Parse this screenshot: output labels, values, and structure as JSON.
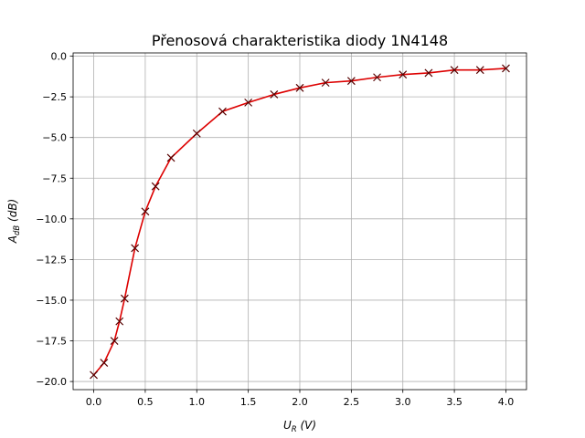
{
  "chart_data": {
    "type": "line",
    "title": "Přenosová charakteristika diody 1N4148",
    "xlabel": {
      "main": "U",
      "sub": "R",
      "unit": " (V)"
    },
    "ylabel": {
      "main": "A",
      "sub": "dB",
      "unit": " (dB)"
    },
    "xlim": [
      -0.2,
      4.2
    ],
    "ylim": [
      -20.5,
      0.2
    ],
    "xticks": [
      0.0,
      0.5,
      1.0,
      1.5,
      2.0,
      2.5,
      3.0,
      3.5,
      4.0
    ],
    "xtick_labels": [
      "0.0",
      "0.5",
      "1.0",
      "1.5",
      "2.0",
      "2.5",
      "3.0",
      "3.5",
      "4.0"
    ],
    "yticks": [
      0.0,
      -2.5,
      -5.0,
      -7.5,
      -10.0,
      -12.5,
      -15.0,
      -17.5,
      -20.0
    ],
    "ytick_labels": [
      "0.0",
      "−2.5",
      "−5.0",
      "−7.5",
      "−10.0",
      "−12.5",
      "−15.0",
      "−17.5",
      "−20.0"
    ],
    "grid": true,
    "series": [
      {
        "line_color": "#dd0000",
        "marker": "x",
        "marker_color": "#550000",
        "x": [
          0.0,
          0.1,
          0.2,
          0.25,
          0.3,
          0.4,
          0.5,
          0.6,
          0.75,
          1.0,
          1.25,
          1.5,
          1.75,
          2.0,
          2.25,
          2.5,
          2.75,
          3.0,
          3.25,
          3.5,
          3.75,
          4.0
        ],
        "y": [
          -19.6,
          -18.85,
          -17.5,
          -16.3,
          -14.9,
          -11.8,
          -9.55,
          -8.0,
          -6.25,
          -4.75,
          -3.4,
          -2.85,
          -2.35,
          -1.95,
          -1.63,
          -1.52,
          -1.3,
          -1.13,
          -1.03,
          -0.85,
          -0.85,
          -0.75
        ]
      }
    ]
  }
}
